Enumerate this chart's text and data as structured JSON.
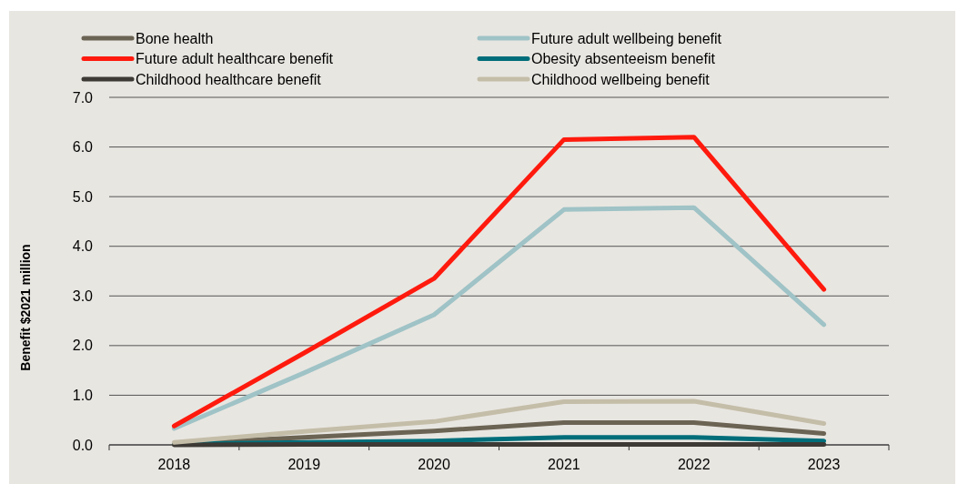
{
  "chart_data": {
    "type": "line",
    "ylabel": "Benefit $2021 million",
    "categories": [
      "2018",
      "2019",
      "2020",
      "2021",
      "2022",
      "2023"
    ],
    "ylim": [
      0,
      7
    ],
    "yticks": [
      {
        "value": 0,
        "label": "0.0"
      },
      {
        "value": 1,
        "label": "1.0"
      },
      {
        "value": 2,
        "label": "2.0"
      },
      {
        "value": 3,
        "label": "3.0"
      },
      {
        "value": 4,
        "label": "4.0"
      },
      {
        "value": 5,
        "label": "5.0"
      },
      {
        "value": 6,
        "label": "6.0"
      },
      {
        "value": 7,
        "label": "7.0"
      }
    ],
    "grid": "y",
    "legend": "top",
    "marker": "none",
    "line_style": "solid",
    "series": [
      {
        "name": "Bone health",
        "color": "#6b6353",
        "values": [
          0.02,
          0.15,
          0.28,
          0.45,
          0.45,
          0.23
        ]
      },
      {
        "name": "Future adult wellbeing benefit",
        "color": "#9fc3c6",
        "values": [
          0.33,
          1.45,
          2.62,
          4.74,
          4.78,
          2.42
        ]
      },
      {
        "name": "Future adult healthcare benefit",
        "color": "#ff1a0e",
        "values": [
          0.38,
          1.85,
          3.35,
          6.15,
          6.2,
          3.13
        ]
      },
      {
        "name": "Obesity absenteeism benefit",
        "color": "#006e7a",
        "values": [
          0.02,
          0.05,
          0.08,
          0.15,
          0.15,
          0.08
        ]
      },
      {
        "name": "Childhood healthcare benefit",
        "color": "#3d3a35",
        "values": [
          0,
          0.01,
          0.01,
          0.01,
          0.01,
          0.01
        ]
      },
      {
        "name": "Childhood wellbeing benefit",
        "color": "#c4bda8",
        "values": [
          0.05,
          0.27,
          0.47,
          0.87,
          0.88,
          0.43
        ]
      }
    ]
  }
}
